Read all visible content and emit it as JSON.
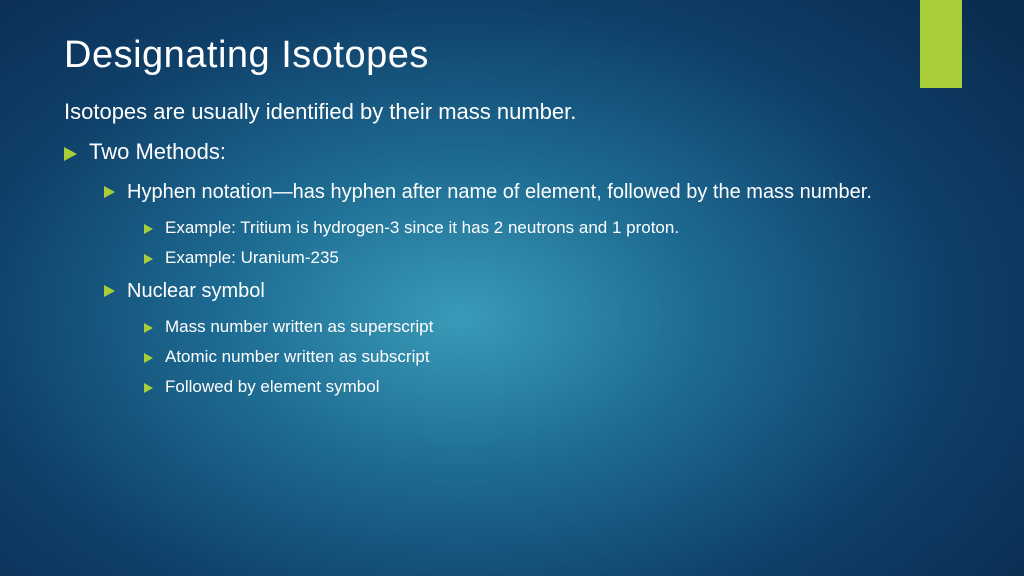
{
  "colors": {
    "accent": "#a8cf3a",
    "text": "#ffffff",
    "bullet_border_left": "11px solid #a8cf3a",
    "bullet_lvl1_border_left": "13px solid #a8cf3a",
    "bullet_lvl3_border_left": "9px solid #a8cf3a"
  },
  "title": "Designating Isotopes",
  "intro": "Isotopes are usually identified by their mass number.",
  "lvl1": [
    {
      "text": "Two Methods:",
      "lvl2": [
        {
          "text": "Hyphen notation—has hyphen after name of element, followed by the mass number.",
          "lvl3": [
            {
              "text": "Example: Tritium is hydrogen-3 since it has 2 neutrons and 1 proton."
            },
            {
              "text": "Example: Uranium-235"
            }
          ]
        },
        {
          "text": "Nuclear symbol",
          "lvl3": [
            {
              "text": "Mass number written as superscript"
            },
            {
              "text": "Atomic number written as subscript"
            },
            {
              "text": "Followed by element symbol"
            }
          ]
        }
      ]
    }
  ]
}
